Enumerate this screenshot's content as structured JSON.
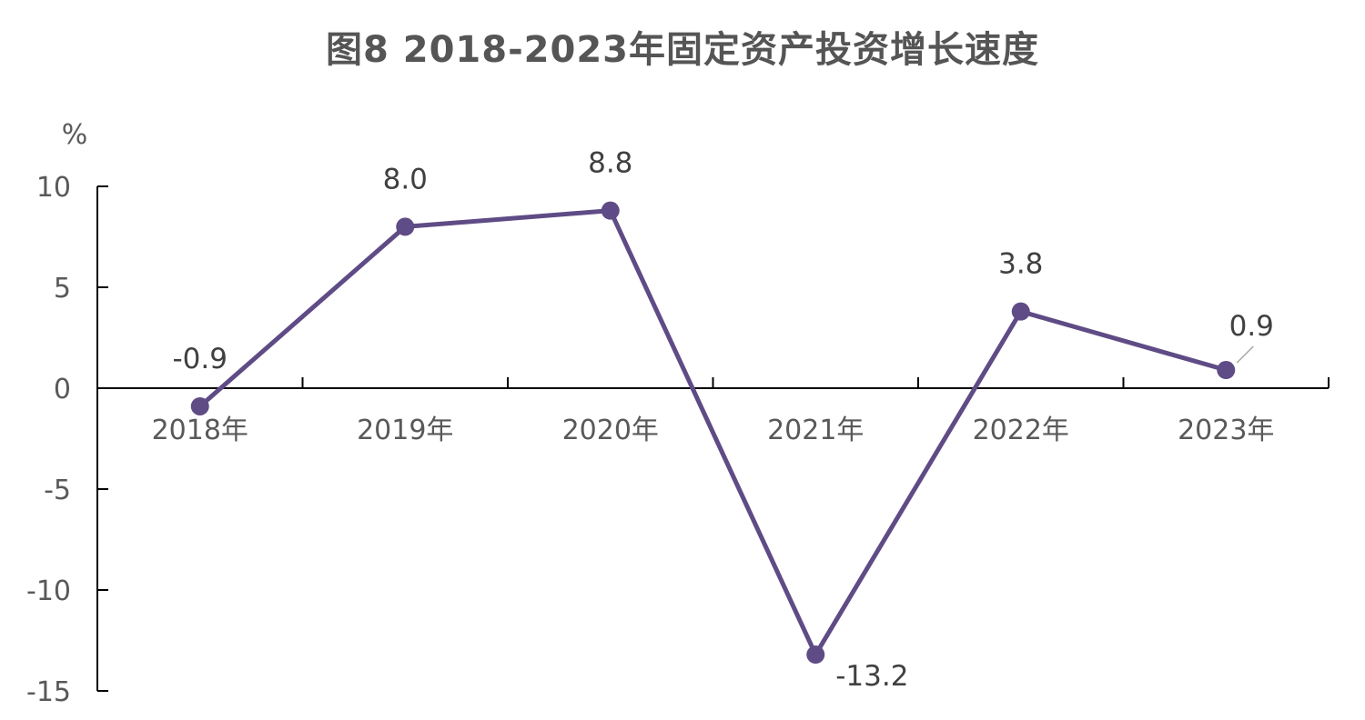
{
  "chart_data": {
    "type": "line",
    "title": "图8 2018-2023年固定资产投资增长速度",
    "unit": "%",
    "categories": [
      "2018年",
      "2019年",
      "2020年",
      "2021年",
      "2022年",
      "2023年"
    ],
    "series": [
      {
        "values": [
          -0.9,
          8.0,
          8.8,
          -13.2,
          3.8,
          0.9
        ],
        "labels": [
          "-0.9",
          "8.0",
          "8.8",
          "-13.2",
          "3.8",
          "0.9"
        ]
      }
    ],
    "yticks": [
      10,
      5,
      0,
      -5,
      -10,
      -15
    ],
    "ylim": [
      -15,
      10
    ],
    "grid": false,
    "legend": "none",
    "colors": {
      "line": "#5f4b85",
      "axis": "#000000",
      "text": "#595959"
    }
  }
}
